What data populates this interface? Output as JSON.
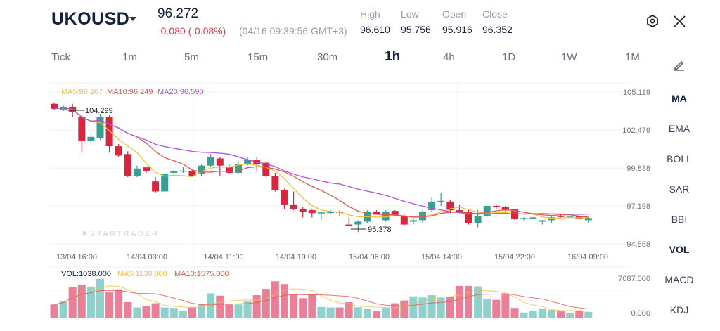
{
  "header": {
    "symbol": "UKOUSD",
    "price": "96.272",
    "change": "-0.080 (-0.08%)",
    "time": "(04/16 09:39:56 GMT+3)",
    "stats": [
      {
        "label": "High",
        "value": "96.610"
      },
      {
        "label": "Low",
        "value": "95.756"
      },
      {
        "label": "Open",
        "value": "95.916"
      },
      {
        "label": "Close",
        "value": "96.352"
      }
    ]
  },
  "timeframes": [
    "Tick",
    "1m",
    "5m",
    "15m",
    "30m",
    "1h",
    "4h",
    "1D",
    "1W",
    "1M"
  ],
  "active_timeframe": "1h",
  "indicators": [
    "MA",
    "EMA",
    "BOLL",
    "SAR",
    "BBI",
    "VOL",
    "MACD",
    "KDJ"
  ],
  "legend": {
    "ma5": "MA5:96.267",
    "ma10": "MA10:96.249",
    "ma20": "MA20:96.590",
    "vol": "VOL:1038.000",
    "vma5": "MA5:1138.000",
    "vma10": "MA10:1575.000"
  },
  "watermark": "STARTRADER",
  "colors": {
    "up": "#3a9e94",
    "down": "#d9263f",
    "ma5": "#f0c040",
    "ma10": "#e0574f",
    "ma20": "#b455d6",
    "vol_up": "#8fd1cc",
    "vol_down": "#e98098"
  },
  "chart_data": {
    "type": "candlestick",
    "price_ticks": [
      "105.119",
      "102.479",
      "99.838",
      "97.198",
      "94.558"
    ],
    "ylim": [
      94.558,
      105.119
    ],
    "x_labels": [
      "13/04 16:00",
      "14/04 03:00",
      "14/04 11:00",
      "14/04 19:00",
      "15/04 06:00",
      "15/04 14:00",
      "15/04 22:00",
      "16/04 09:00"
    ],
    "max_label": "104.299",
    "min_label": "95.378",
    "vol_ticks": [
      "7087.000",
      "0.000"
    ],
    "vol_max": 7087,
    "ohlc": [
      [
        104.3,
        104.4,
        103.9,
        103.95
      ],
      [
        103.9,
        104.2,
        103.8,
        104.1
      ],
      [
        104.1,
        104.3,
        103.4,
        103.7
      ],
      [
        103.4,
        103.5,
        100.9,
        101.7
      ],
      [
        101.7,
        102.3,
        101.4,
        102.0
      ],
      [
        101.9,
        103.6,
        101.8,
        103.4
      ],
      [
        103.4,
        103.5,
        100.9,
        101.35
      ],
      [
        101.35,
        101.5,
        100.6,
        100.7
      ],
      [
        100.8,
        101.0,
        99.2,
        99.3
      ],
      [
        99.3,
        100.0,
        99.2,
        99.8
      ],
      [
        99.88,
        99.95,
        99.5,
        99.64
      ],
      [
        98.9,
        99.2,
        98.1,
        98.2
      ],
      [
        98.2,
        99.5,
        98.2,
        99.4
      ],
      [
        99.5,
        99.7,
        99.3,
        99.6
      ],
      [
        99.6,
        99.9,
        99.5,
        99.65
      ],
      [
        99.6,
        99.7,
        99.2,
        99.3
      ],
      [
        99.4,
        100.1,
        99.3,
        100.0
      ],
      [
        100.0,
        100.8,
        99.9,
        100.6
      ],
      [
        100.5,
        100.6,
        99.3,
        100.0
      ],
      [
        99.9,
        100.1,
        99.4,
        99.5
      ],
      [
        99.5,
        100.3,
        99.4,
        100.1
      ],
      [
        100.1,
        100.6,
        100.0,
        100.4
      ],
      [
        100.4,
        100.6,
        99.6,
        100.1
      ],
      [
        100.2,
        100.3,
        99.2,
        99.3
      ],
      [
        99.3,
        99.5,
        98.2,
        98.3
      ],
      [
        98.3,
        98.4,
        97.0,
        97.3
      ],
      [
        97.3,
        98.2,
        96.9,
        97.0
      ],
      [
        97.0,
        97.1,
        96.4,
        96.8
      ],
      [
        96.9,
        97.0,
        96.4,
        96.7
      ],
      [
        96.7,
        96.8,
        96.2,
        96.75
      ],
      [
        96.7,
        96.9,
        96.6,
        96.8
      ],
      [
        96.8,
        96.9,
        96.5,
        96.75
      ],
      [
        95.9,
        96.4,
        95.8,
        95.85
      ],
      [
        95.9,
        96.2,
        95.38,
        96.1
      ],
      [
        96.1,
        96.9,
        96.0,
        96.8
      ],
      [
        96.8,
        96.9,
        96.6,
        96.6
      ],
      [
        96.2,
        96.9,
        96.1,
        96.8
      ],
      [
        96.85,
        96.9,
        96.5,
        96.5
      ],
      [
        96.5,
        96.6,
        95.8,
        95.9
      ],
      [
        96.1,
        96.4,
        95.9,
        96.2
      ],
      [
        96.2,
        96.9,
        96.0,
        96.8
      ],
      [
        96.9,
        97.8,
        96.8,
        97.5
      ],
      [
        97.5,
        98.1,
        97.2,
        97.55
      ],
      [
        97.5,
        97.6,
        96.7,
        96.9
      ],
      [
        96.9,
        97.3,
        96.7,
        96.8
      ],
      [
        96.8,
        96.9,
        95.9,
        96.0
      ],
      [
        96.0,
        96.9,
        95.7,
        96.5
      ],
      [
        96.5,
        97.2,
        96.4,
        97.2
      ],
      [
        97.2,
        97.3,
        97.0,
        97.1
      ],
      [
        97.15,
        97.2,
        96.8,
        96.9
      ],
      [
        96.95,
        97.0,
        96.2,
        96.3
      ],
      [
        96.3,
        96.4,
        96.2,
        96.35
      ],
      [
        96.35,
        96.4,
        96.3,
        96.4
      ],
      [
        96.1,
        96.2,
        95.9,
        96.2
      ],
      [
        96.2,
        96.5,
        96.0,
        96.4
      ],
      [
        96.5,
        96.6,
        96.4,
        96.45
      ],
      [
        96.45,
        96.6,
        96.3,
        96.5
      ],
      [
        96.5,
        96.5,
        96.2,
        96.27
      ],
      [
        96.2,
        96.4,
        96.0,
        96.35
      ]
    ],
    "volume": [
      2419,
      3056,
      5602,
      6027,
      5687,
      7087,
      4753,
      5178,
      2843,
      1867,
      2122,
      2631,
      1867,
      1782,
      1273,
      1867,
      2546,
      4456,
      4032,
      2419,
      2419,
      2971,
      4117,
      5262,
      6663,
      6154,
      4329,
      3565,
      4244,
      1952,
      1867,
      1867,
      2843,
      1910,
      1698,
      1146,
      1782,
      2631,
      3141,
      3904,
      3692,
      4117,
      3607,
      3777,
      5814,
      5814,
      5729,
      3480,
      3268,
      4414,
      1782,
      934,
      1273,
      1698,
      1443,
      1146,
      849,
      1273,
      1038
    ]
  }
}
